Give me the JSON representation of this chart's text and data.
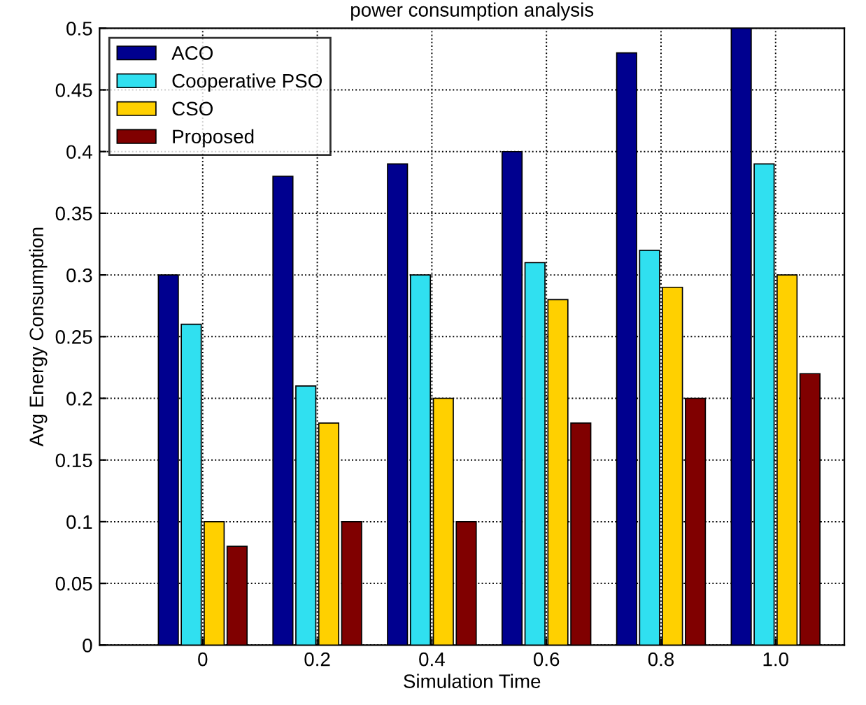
{
  "chart_data": {
    "type": "bar",
    "title": "power consumption analysis",
    "xlabel": "Simulation Time",
    "ylabel": "Avg Energy Consumption",
    "categories": [
      "0",
      "0.2",
      "0.4",
      "0.6",
      "0.8",
      "1.0"
    ],
    "series": [
      {
        "name": "ACO",
        "color": "#00008f",
        "values": [
          0.3,
          0.38,
          0.39,
          0.4,
          0.48,
          0.5
        ]
      },
      {
        "name": "Cooperative PSO",
        "color": "#30e0f0",
        "values": [
          0.26,
          0.21,
          0.3,
          0.31,
          0.32,
          0.39
        ]
      },
      {
        "name": "CSO",
        "color": "#ffd000",
        "values": [
          0.1,
          0.18,
          0.2,
          0.28,
          0.29,
          0.3
        ]
      },
      {
        "name": "Proposed",
        "color": "#800000",
        "values": [
          0.08,
          0.1,
          0.1,
          0.18,
          0.2,
          0.22
        ]
      }
    ],
    "ylim": [
      0,
      0.5
    ],
    "yticks": [
      0,
      0.05,
      0.1,
      0.15,
      0.2,
      0.25,
      0.3,
      0.35,
      0.4,
      0.45,
      0.5
    ],
    "grid": true,
    "legend": "top left"
  }
}
